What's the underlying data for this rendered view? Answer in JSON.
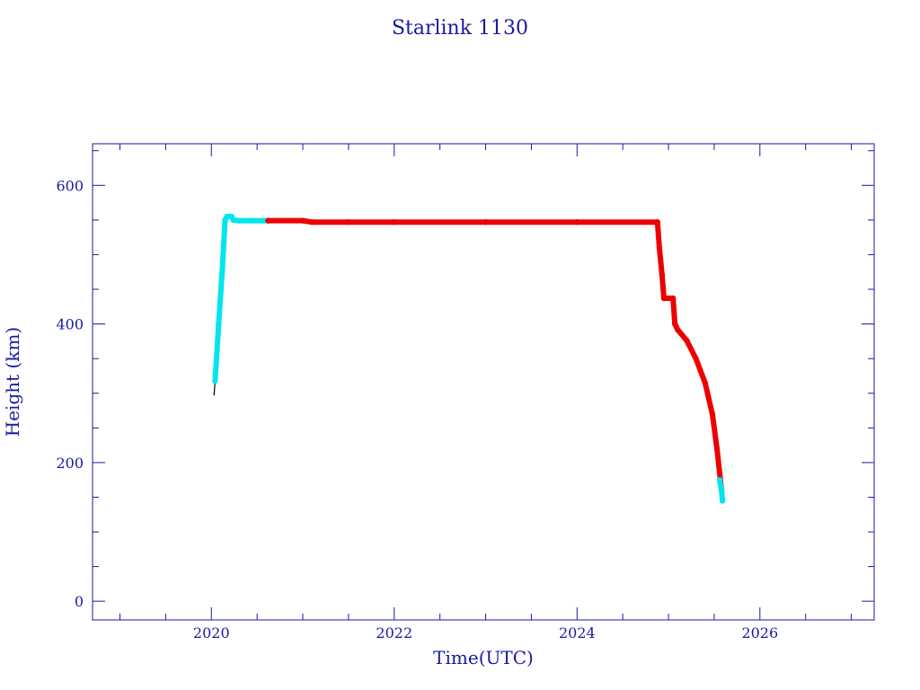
{
  "chart_data": {
    "type": "line",
    "title": "Starlink 1130",
    "xlabel": "Time(UTC)",
    "ylabel": "Height (km)",
    "xlim": [
      2018.7,
      2027.25
    ],
    "ylim": [
      -27,
      660
    ],
    "x_ticks": [
      2020,
      2022,
      2024,
      2026
    ],
    "x_tick_labels": [
      "2020",
      "2022",
      "2024",
      "2026"
    ],
    "y_ticks": [
      0,
      200,
      400,
      600
    ],
    "y_tick_labels": [
      "0",
      "200",
      "400",
      "600"
    ],
    "grid": false,
    "legend": "none",
    "colors": {
      "axes": "#1a1aa0",
      "cyan": "#00e5ee",
      "red": "#ee0000",
      "dark": "#000000"
    },
    "series": [
      {
        "color": "dark",
        "x": [
          2020.03,
          2020.04
        ],
        "y": [
          298,
          318
        ]
      },
      {
        "color": "cyan",
        "x": [
          2020.04,
          2020.08,
          2020.12,
          2020.15,
          2020.17,
          2020.22,
          2020.24,
          2020.3,
          2020.45,
          2020.62
        ],
        "y": [
          318,
          400,
          480,
          550,
          555,
          555,
          550,
          549,
          549,
          549
        ]
      },
      {
        "color": "red",
        "x": [
          2020.62,
          2021.0,
          2021.1,
          2021.5,
          2022.0,
          2023.0,
          2024.0,
          2024.88,
          2024.9,
          2024.93,
          2024.95,
          2025.05,
          2025.07,
          2025.1,
          2025.2,
          2025.3,
          2025.4,
          2025.48,
          2025.53,
          2025.56,
          2025.58
        ],
        "y": [
          549,
          549,
          547,
          547,
          547,
          547,
          547,
          547,
          510,
          470,
          437,
          437,
          400,
          392,
          376,
          350,
          315,
          270,
          220,
          185,
          160
        ]
      },
      {
        "color": "cyan",
        "x": [
          2025.56,
          2025.58,
          2025.59
        ],
        "y": [
          175,
          160,
          145
        ]
      }
    ]
  }
}
